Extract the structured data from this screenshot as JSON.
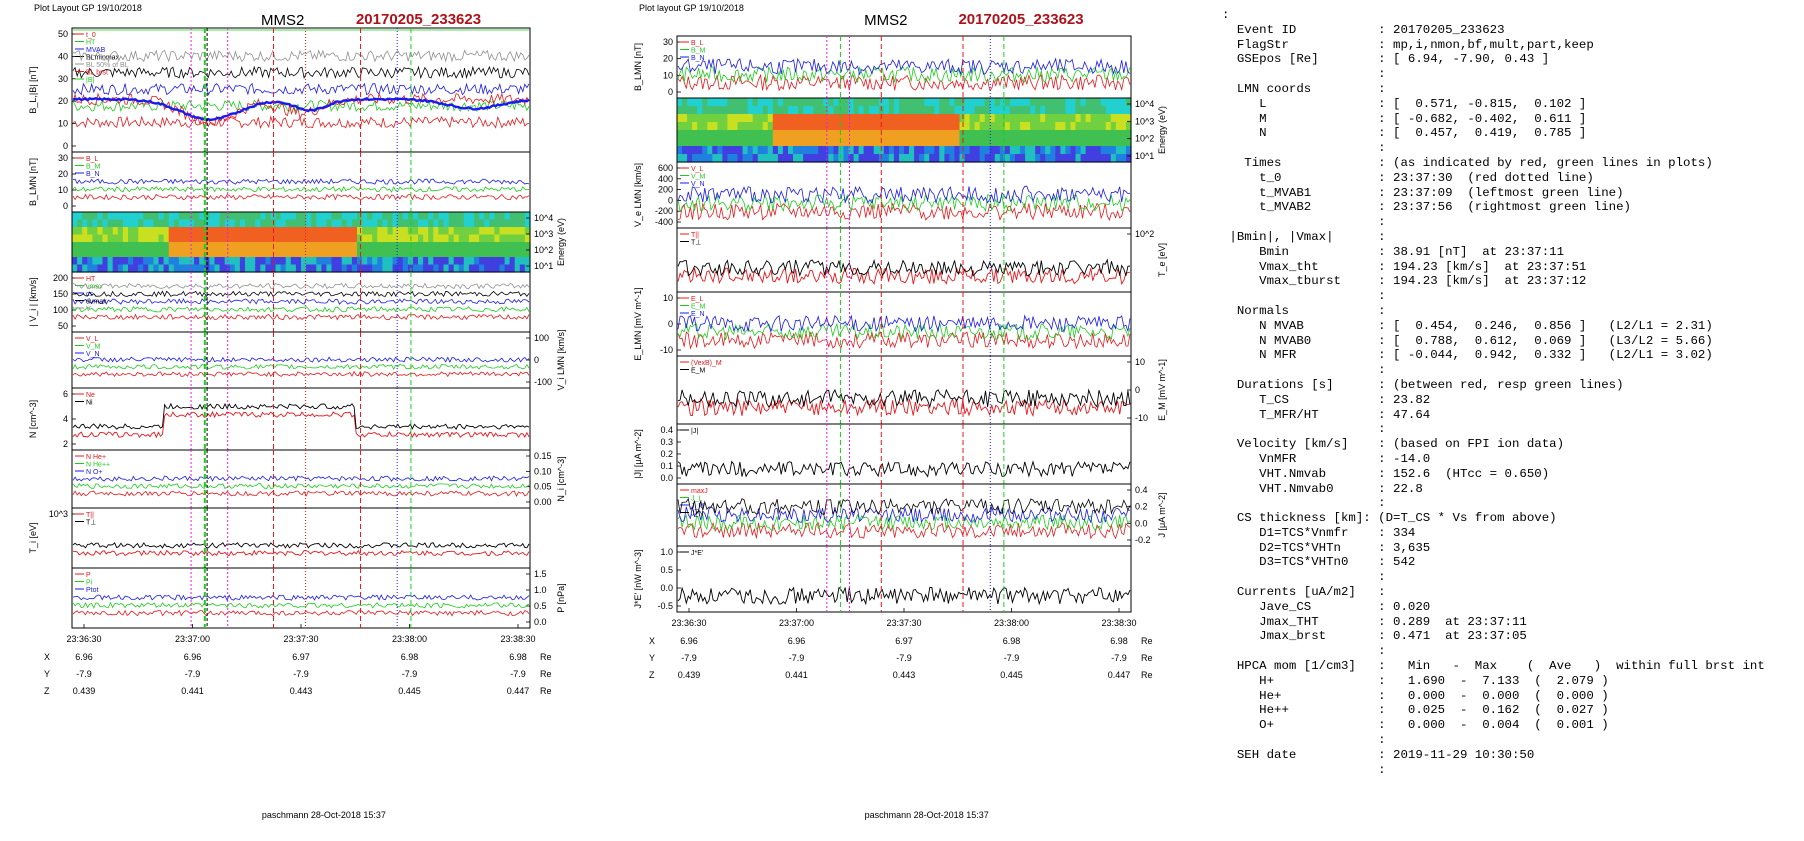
{
  "colors": {
    "red": "#e8181c",
    "green": "#1ecc1e",
    "blue": "#1a1aee",
    "black": "#000000",
    "grey": "#909090",
    "magenta": "#e020e0",
    "cyan": "#20c8c8",
    "title_red": "#b0101a"
  },
  "left_page": {
    "header_text": "Plot Layout GP 19/10/2018",
    "spacecraft": "MMS2",
    "event": "20170205_233623",
    "footer": "paschmann 28-Oct-2018 15:37",
    "time_ticks": [
      "23:36:30",
      "23:37:00",
      "23:37:30",
      "23:38:00",
      "23:38:30"
    ],
    "pos_rows": [
      {
        "label": "X",
        "values": [
          "6.96",
          "6.96",
          "6.97",
          "6.98",
          "6.98"
        ],
        "unit": "Re"
      },
      {
        "label": "Y",
        "values": [
          "-7.9",
          "-7.9",
          "-7.9",
          "-7.9",
          "-7.9"
        ],
        "unit": "Re"
      },
      {
        "label": "Z",
        "values": [
          "0.439",
          "0.441",
          "0.443",
          "0.445",
          "0.447"
        ],
        "unit": "Re"
      }
    ],
    "panels": [
      {
        "ylabel": "B_L,|B| [nT]",
        "yticks": [
          "50",
          "40",
          "30",
          "20",
          "10",
          "0"
        ],
        "legend": [
          "t_0",
          "HT",
          "MVAB",
          "BLminmax",
          "BL 50% of BL",
          "BL brst",
          "|B|"
        ]
      },
      {
        "ylabel": "B_LMN [nT]",
        "yticks": [
          "30",
          "20",
          "10",
          "0"
        ],
        "legend": [
          "B_L",
          "B_M",
          "B_N"
        ]
      },
      {
        "ylabel": "Energy (eV)",
        "yticks_right": [
          "10^4",
          "10^3",
          "10^2",
          "10^1"
        ]
      },
      {
        "ylabel": "| V_i | [km/s]",
        "yticks": [
          "200",
          "150",
          "100",
          "50"
        ],
        "legend": [
          "HT",
          "vmax",
          "cs",
          "dvmax",
          "V"
        ]
      },
      {
        "ylabel": "V_i LMN [km/s]",
        "yticks_right": [
          "100",
          "0",
          "-100"
        ],
        "legend": [
          "V_L",
          "V_M",
          "V_N"
        ]
      },
      {
        "ylabel": "N [cm^-3]",
        "yticks": [
          "6",
          "4",
          "2"
        ],
        "legend": [
          "Ne",
          "Ni"
        ]
      },
      {
        "ylabel": "N_i [cm^-3]",
        "yticks_right": [
          "0.15",
          "0.10",
          "0.05",
          "0.00"
        ],
        "legend": [
          "N He+",
          "N He++",
          "N O+"
        ]
      },
      {
        "ylabel": "T_i [eV]",
        "yticks": [
          "10^3"
        ],
        "legend": [
          "T||",
          "T⊥"
        ]
      },
      {
        "ylabel": "P [nPa]",
        "yticks_right": [
          "1.5",
          "1.0",
          "0.5",
          "0.0"
        ],
        "legend": [
          "P",
          "Pi",
          "Ptot"
        ]
      }
    ]
  },
  "mid_page": {
    "header_text": "Plot layout GP 19/10/2018",
    "spacecraft": "MMS2",
    "event": "20170205_233623",
    "footer": "paschmann 28-Oct-2018 15:37",
    "time_ticks": [
      "23:36:30",
      "23:37:00",
      "23:37:30",
      "23:38:00",
      "23:38:30"
    ],
    "pos_rows": [
      {
        "label": "X",
        "values": [
          "6.96",
          "6.96",
          "6.97",
          "6.98",
          "6.98"
        ],
        "unit": "Re"
      },
      {
        "label": "Y",
        "values": [
          "-7.9",
          "-7.9",
          "-7.9",
          "-7.9",
          "-7.9"
        ],
        "unit": "Re"
      },
      {
        "label": "Z",
        "values": [
          "0.439",
          "0.441",
          "0.443",
          "0.445",
          "0.447"
        ],
        "unit": "Re"
      }
    ],
    "panels": [
      {
        "ylabel": "B_LMN [nT]",
        "yticks": [
          "30",
          "20",
          "10",
          "0"
        ],
        "legend": [
          "B_L",
          "B_M",
          "B_N"
        ]
      },
      {
        "ylabel": "Energy (eV)",
        "yticks_right": [
          "10^4",
          "10^3",
          "10^2",
          "10^1"
        ]
      },
      {
        "ylabel": "V_e LMN [km/s]",
        "yticks": [
          "600",
          "400",
          "200",
          "0",
          "-200",
          "-400"
        ],
        "legend": [
          "V_L",
          "V_M",
          "V_N"
        ]
      },
      {
        "ylabel": "T_e [eV]",
        "yticks_right": [
          "10^2"
        ],
        "legend": [
          "T||",
          "T⊥"
        ]
      },
      {
        "ylabel": "E_LMN [mV m^-1]",
        "yticks": [
          "10",
          "0",
          "-10"
        ],
        "legend": [
          "E_L",
          "E_M",
          "E_N"
        ]
      },
      {
        "ylabel": "E_M [mV m^-1]",
        "yticks_right": [
          "10",
          "0",
          "-10"
        ],
        "legend": [
          "(VexB)_M",
          "E_M"
        ]
      },
      {
        "ylabel": "|J| [μA m^-2]",
        "yticks": [
          "0.4",
          "0.3",
          "0.2",
          "0.1",
          "0.0"
        ],
        "legend": [
          "|J|"
        ]
      },
      {
        "ylabel": "J [μA m^-2]",
        "yticks_right": [
          "0.4",
          "0.2",
          "0.0",
          "-0.2"
        ],
        "legend": [
          "maxJ",
          "J_L",
          "J_M",
          "J_N"
        ]
      },
      {
        "ylabel": "J*E' [nW m^-3]",
        "yticks": [
          "1.0",
          "0.5",
          "0.0",
          "-0.5"
        ],
        "legend": [
          "J*E'"
        ]
      }
    ]
  },
  "info_lines": [
    ":",
    "  Event ID           : 20170205_233623",
    "  FlagStr            : mp,i,nmon,bf,mult,part,keep",
    "  GSEpos [Re]        : [ 6.94, -7.90, 0.43 ]",
    "                     :",
    "  LMN coords         :",
    "     L               : [  0.571, -0.815,  0.102 ]",
    "     M               : [ -0.682, -0.402,  0.611 ]",
    "     N               : [  0.457,  0.419,  0.785 ]",
    "                     :",
    "   Times             : (as indicated by red, green lines in plots)",
    "     t_0             : 23:37:30  (red dotted line)",
    "     t_MVAB1         : 23:37:09  (leftmost green line)",
    "     t_MVAB2         : 23:37:56  (rightmost green line)",
    "                     :",
    " |Bmin|, |Vmax|      :",
    "     Bmin            : 38.91 [nT]  at 23:37:11",
    "     Vmax_tht        : 194.23 [km/s]  at 23:37:51",
    "     Vmax_tburst     : 194.23 [km/s]  at 23:37:12",
    "                     :",
    "  Normals            :",
    "     N MVAB          : [  0.454,  0.246,  0.856 ]   (L2/L1 = 2.31)",
    "     N MVAB0         : [  0.788,  0.612,  0.069 ]   (L3/L2 = 5.66)",
    "     N MFR           : [ -0.044,  0.942,  0.332 ]   (L2/L1 = 3.02)",
    "                     :",
    "  Durations [s]      : (between red, resp green lines)",
    "     T_CS            : 23.82",
    "     T_MFR/HT        : 47.64",
    "                     :",
    "  Velocity [km/s]    : (based on FPI ion data)",
    "     VnMFR           : -14.0",
    "     VHT.Nmvab       : 152.6  (HTcc = 0.650)",
    "     VHT.Nmvab0      : 22.8",
    "                     :",
    "  CS thickness [km]: (D=T_CS * Vs from above)",
    "     D1=TCS*Vnmfr    : 334",
    "     D2=TCS*VHTn     : 3,635",
    "     D3=TCS*VHTn0    : 542",
    "                     :",
    "  Currents [uA/m2]   :",
    "     Jave_CS         : 0.020",
    "     Jmax_THT        : 0.289  at 23:37:11",
    "     Jmax_brst       : 0.471  at 23:37:05",
    "                     :",
    "  HPCA mom [1/cm3]   :   Min   -  Max    (  Ave   )  within full brst int",
    "     H+              :   1.690  -  7.133  (  2.079 )",
    "     He+             :   0.000  -  0.000  (  0.000 )",
    "     He++            :   0.025  -  0.162  (  0.027 )",
    "     O+              :   0.000  -  0.004  (  0.001 )",
    "                     :",
    "  SEH date           : 2019-11-29 10:30:50",
    "                     :"
  ]
}
